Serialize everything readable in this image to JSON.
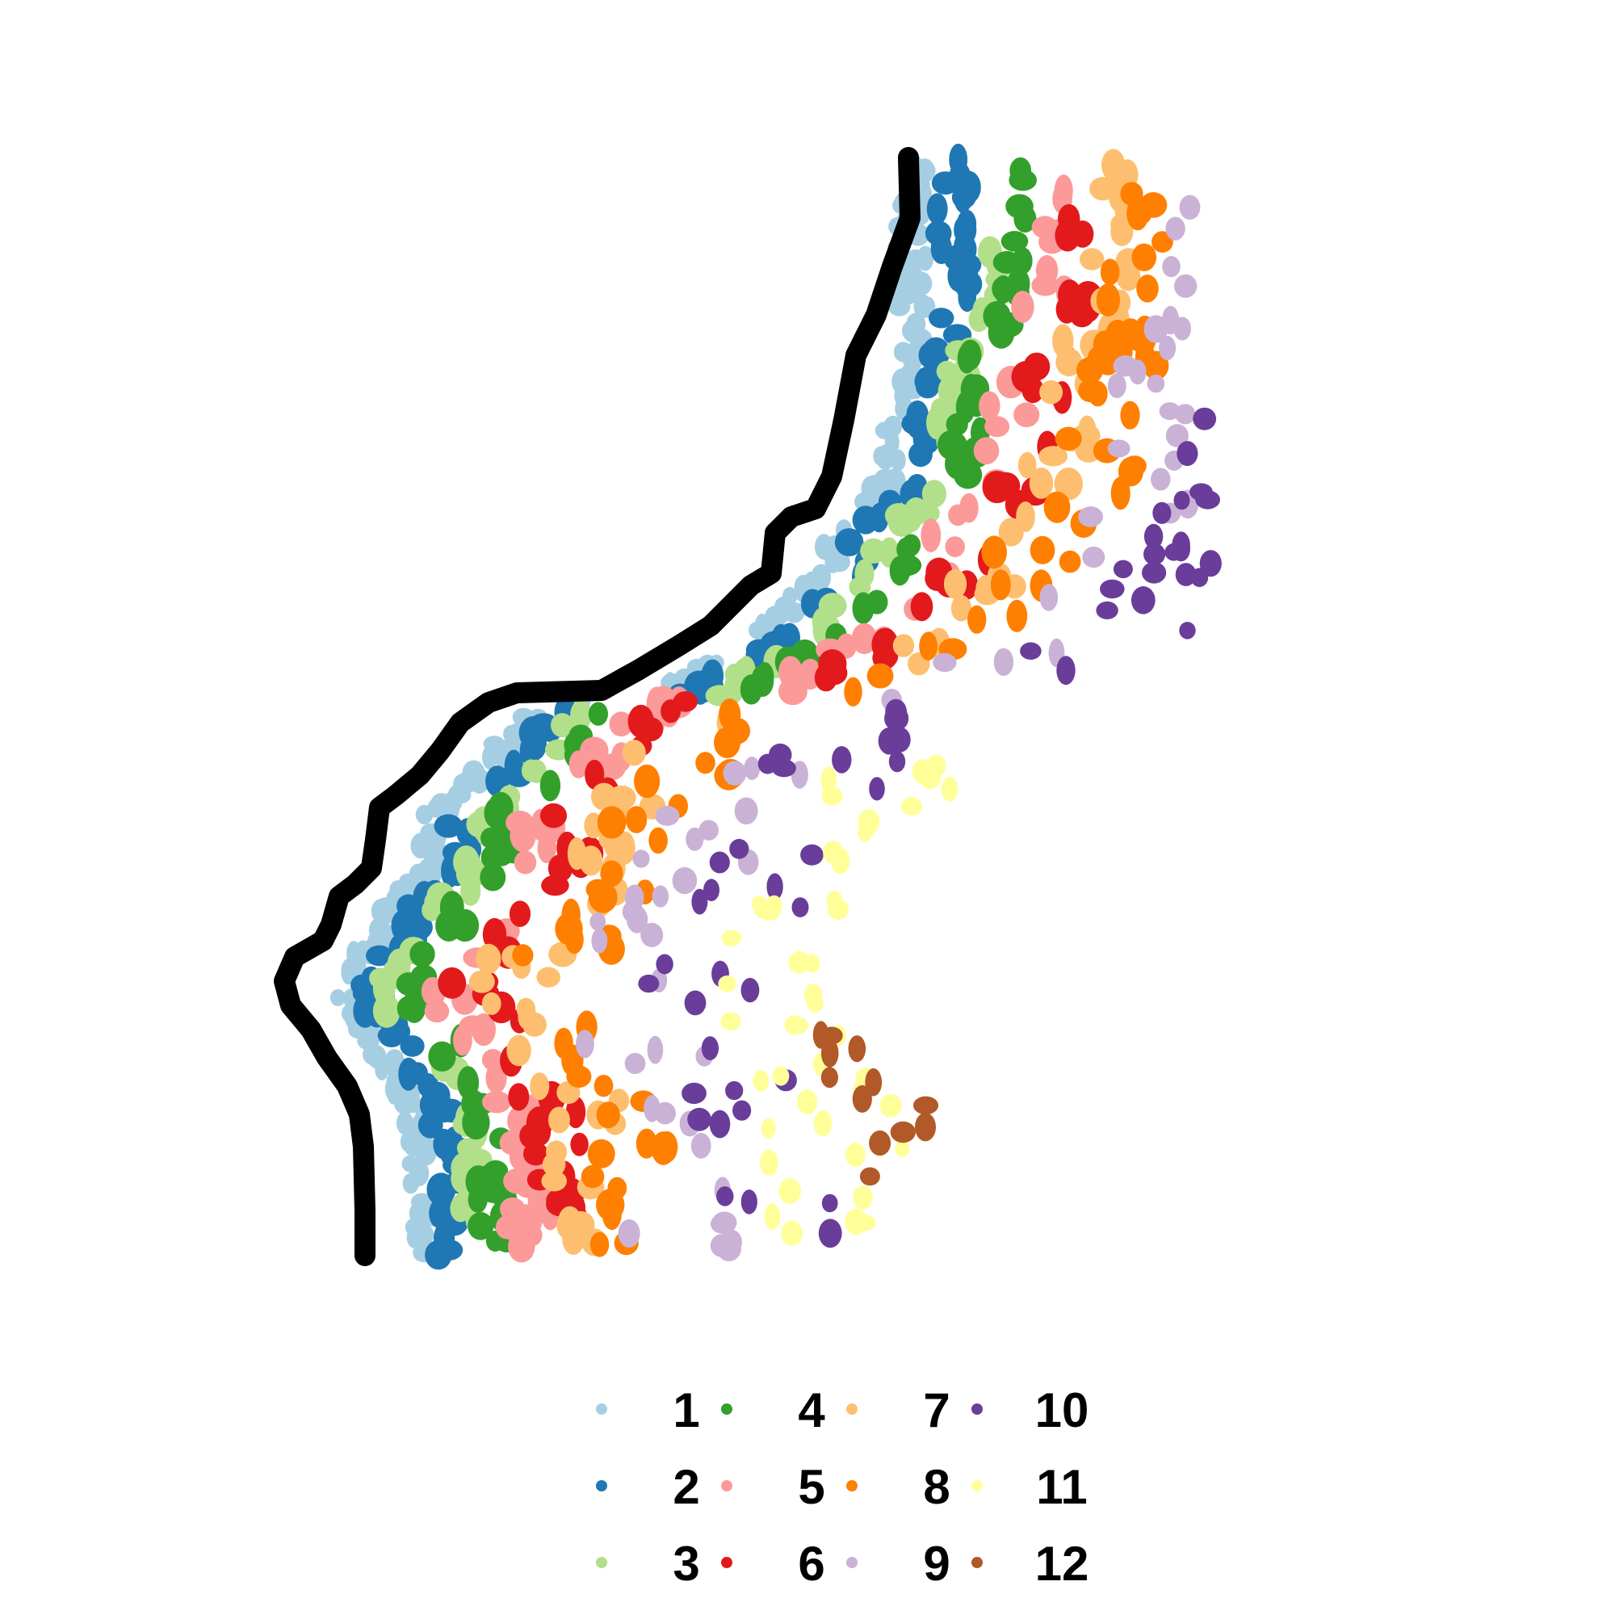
{
  "chart_data": {
    "type": "scatter",
    "title": "",
    "xlabel": "",
    "ylabel": "",
    "axes_visible": false,
    "grid": false,
    "legend_position": "bottom",
    "boundary_color": "#000000",
    "boundary_path": [
      [
        1125,
        195
      ],
      [
        1127,
        270
      ],
      [
        1105,
        330
      ],
      [
        1085,
        390
      ],
      [
        1060,
        440
      ],
      [
        1045,
        520
      ],
      [
        1030,
        590
      ],
      [
        1010,
        630
      ],
      [
        980,
        640
      ],
      [
        960,
        660
      ],
      [
        955,
        710
      ],
      [
        930,
        725
      ],
      [
        910,
        745
      ],
      [
        880,
        775
      ],
      [
        840,
        800
      ],
      [
        790,
        830
      ],
      [
        745,
        855
      ],
      [
        640,
        858
      ],
      [
        605,
        870
      ],
      [
        570,
        895
      ],
      [
        545,
        930
      ],
      [
        520,
        960
      ],
      [
        490,
        985
      ],
      [
        470,
        1000
      ],
      [
        465,
        1040
      ],
      [
        460,
        1075
      ],
      [
        440,
        1095
      ],
      [
        420,
        1110
      ],
      [
        410,
        1145
      ],
      [
        400,
        1165
      ],
      [
        365,
        1185
      ],
      [
        352,
        1215
      ],
      [
        360,
        1245
      ],
      [
        385,
        1275
      ],
      [
        405,
        1310
      ],
      [
        430,
        1345
      ],
      [
        445,
        1380
      ],
      [
        450,
        1420
      ],
      [
        452,
        1500
      ],
      [
        452,
        1555
      ]
    ],
    "legend": [
      {
        "label": "1",
        "color": "#A6CEE3"
      },
      {
        "label": "2",
        "color": "#1F78B4"
      },
      {
        "label": "3",
        "color": "#B2DF8A"
      },
      {
        "label": "4",
        "color": "#33A02C"
      },
      {
        "label": "5",
        "color": "#FB9A99"
      },
      {
        "label": "6",
        "color": "#E31A1C"
      },
      {
        "label": "7",
        "color": "#FDBF6F"
      },
      {
        "label": "8",
        "color": "#FF7F00"
      },
      {
        "label": "9",
        "color": "#CAB2D6"
      },
      {
        "label": "10",
        "color": "#6A3D9A"
      },
      {
        "label": "11",
        "color": "#FFFF99"
      },
      {
        "label": "12",
        "color": "#B15928"
      }
    ],
    "layer_centerline": [
      [
        1150,
        195
      ],
      [
        1152,
        270
      ],
      [
        1132,
        330
      ],
      [
        1112,
        390
      ],
      [
        1088,
        440
      ],
      [
        1072,
        520
      ],
      [
        1058,
        590
      ],
      [
        1040,
        630
      ],
      [
        1010,
        645
      ],
      [
        990,
        665
      ],
      [
        985,
        712
      ],
      [
        960,
        730
      ],
      [
        940,
        752
      ],
      [
        910,
        782
      ],
      [
        870,
        808
      ],
      [
        820,
        836
      ],
      [
        775,
        862
      ],
      [
        670,
        866
      ],
      [
        635,
        878
      ],
      [
        600,
        903
      ],
      [
        575,
        937
      ],
      [
        550,
        967
      ],
      [
        520,
        992
      ],
      [
        500,
        1007
      ],
      [
        495,
        1045
      ],
      [
        490,
        1080
      ],
      [
        470,
        1100
      ],
      [
        450,
        1115
      ],
      [
        440,
        1150
      ],
      [
        430,
        1170
      ],
      [
        395,
        1190
      ],
      [
        382,
        1218
      ],
      [
        390,
        1248
      ],
      [
        415,
        1278
      ],
      [
        435,
        1312
      ],
      [
        460,
        1347
      ],
      [
        475,
        1382
      ],
      [
        480,
        1422
      ],
      [
        482,
        1500
      ],
      [
        482,
        1555
      ]
    ],
    "layer_offsets": [
      [
        25,
        55
      ],
      [
        55,
        90
      ],
      [
        85,
        120
      ],
      [
        110,
        150
      ],
      [
        145,
        200
      ],
      [
        175,
        240
      ],
      [
        205,
        300
      ],
      [
        240,
        350
      ],
      [
        290,
        440
      ],
      [
        380,
        560
      ],
      [
        470,
        650
      ],
      [
        560,
        720
      ]
    ],
    "cluster_tip_x": [
      1150,
      1200,
      1240,
      1280,
      1320,
      1360,
      1400,
      1440,
      1480,
      1500,
      1380,
      1240
    ],
    "cluster_y_range": [
      [
        195,
        1555
      ],
      [
        195,
        1555
      ],
      [
        290,
        1545
      ],
      [
        200,
        1540
      ],
      [
        195,
        1550
      ],
      [
        250,
        1535
      ],
      [
        200,
        1545
      ],
      [
        190,
        1545
      ],
      [
        250,
        1550
      ],
      [
        510,
        1540
      ],
      [
        940,
        1545
      ],
      [
        1270,
        1540
      ]
    ],
    "cluster_point_counts": [
      230,
      130,
      85,
      85,
      80,
      70,
      80,
      80,
      60,
      55,
      45,
      12
    ],
    "cluster_point_radius": [
      11,
      14,
      14,
      14,
      14,
      14,
      14,
      14,
      12,
      12,
      11,
      12
    ]
  }
}
